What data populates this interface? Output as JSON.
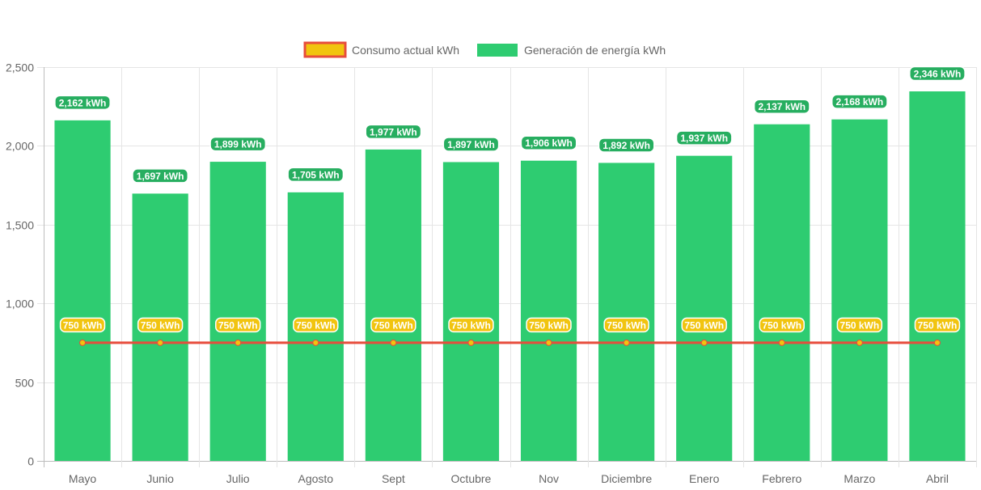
{
  "chart_data": {
    "type": "bar",
    "categories": [
      "Mayo",
      "Junio",
      "Julio",
      "Agosto",
      "Sept",
      "Octubre",
      "Nov",
      "Diciembre",
      "Enero",
      "Febrero",
      "Marzo",
      "Abril"
    ],
    "series": [
      {
        "name": "Consumo actual kWh",
        "type": "line",
        "color": "#e74c3c",
        "point_color": "#f1c40f",
        "label_color": "#f1c40f",
        "values": [
          750,
          750,
          750,
          750,
          750,
          750,
          750,
          750,
          750,
          750,
          750,
          750
        ],
        "data_labels": [
          "750 kWh",
          "750 kWh",
          "750 kWh",
          "750 kWh",
          "750 kWh",
          "750 kWh",
          "750 kWh",
          "750 kWh",
          "750 kWh",
          "750 kWh",
          "750 kWh",
          "750 kWh"
        ]
      },
      {
        "name": "Generación de energía kWh",
        "type": "bar",
        "color": "#2ecc71",
        "label_color": "#27ae60",
        "values": [
          2162,
          1697,
          1899,
          1705,
          1977,
          1897,
          1906,
          1892,
          1937,
          2137,
          2168,
          2346
        ],
        "data_labels": [
          "2,162 kWh",
          "1,697 kWh",
          "1,899 kWh",
          "1,705 kWh",
          "1,977 kWh",
          "1,897 kWh",
          "1,906 kWh",
          "1,892 kWh",
          "1,937 kWh",
          "2,137 kWh",
          "2,168 kWh",
          "2,346 kWh"
        ]
      }
    ],
    "ylim": [
      0,
      2500
    ],
    "yticks": [
      0,
      500,
      1000,
      1500,
      2000,
      2500
    ],
    "ytick_labels": [
      "0",
      "500",
      "1,000",
      "1,500",
      "2,000",
      "2,500"
    ],
    "grid": true,
    "legend_position": "top",
    "title": "",
    "xlabel": "",
    "ylabel": ""
  }
}
